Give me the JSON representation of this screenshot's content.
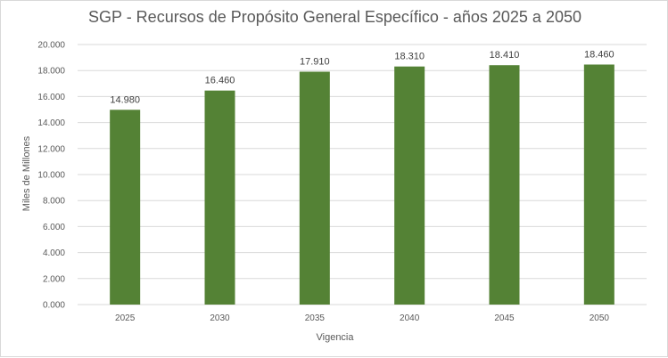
{
  "chart_data": {
    "type": "bar",
    "title": "SGP - Recursos de Propósito General Específico  - años 2025 a 2050",
    "xlabel": "Vigencia",
    "ylabel": "Miles de Millones",
    "categories": [
      "2025",
      "2030",
      "2035",
      "2040",
      "2045",
      "2050"
    ],
    "values": [
      14980,
      16460,
      17910,
      18310,
      18410,
      18460
    ],
    "data_labels": [
      "14.980",
      "16.460",
      "17.910",
      "18.310",
      "18.410",
      "18.460"
    ],
    "ylim": [
      0,
      20000
    ],
    "yticks": [
      0,
      2000,
      4000,
      6000,
      8000,
      10000,
      12000,
      14000,
      16000,
      18000,
      20000
    ],
    "ytick_labels": [
      "0.000",
      "2.000",
      "4.000",
      "6.000",
      "8.000",
      "10.000",
      "12.000",
      "14.000",
      "16.000",
      "18.000",
      "20.000"
    ],
    "grid": true,
    "legend": "none",
    "bar_color": "#548235",
    "grid_color": "#d9d9d9"
  }
}
